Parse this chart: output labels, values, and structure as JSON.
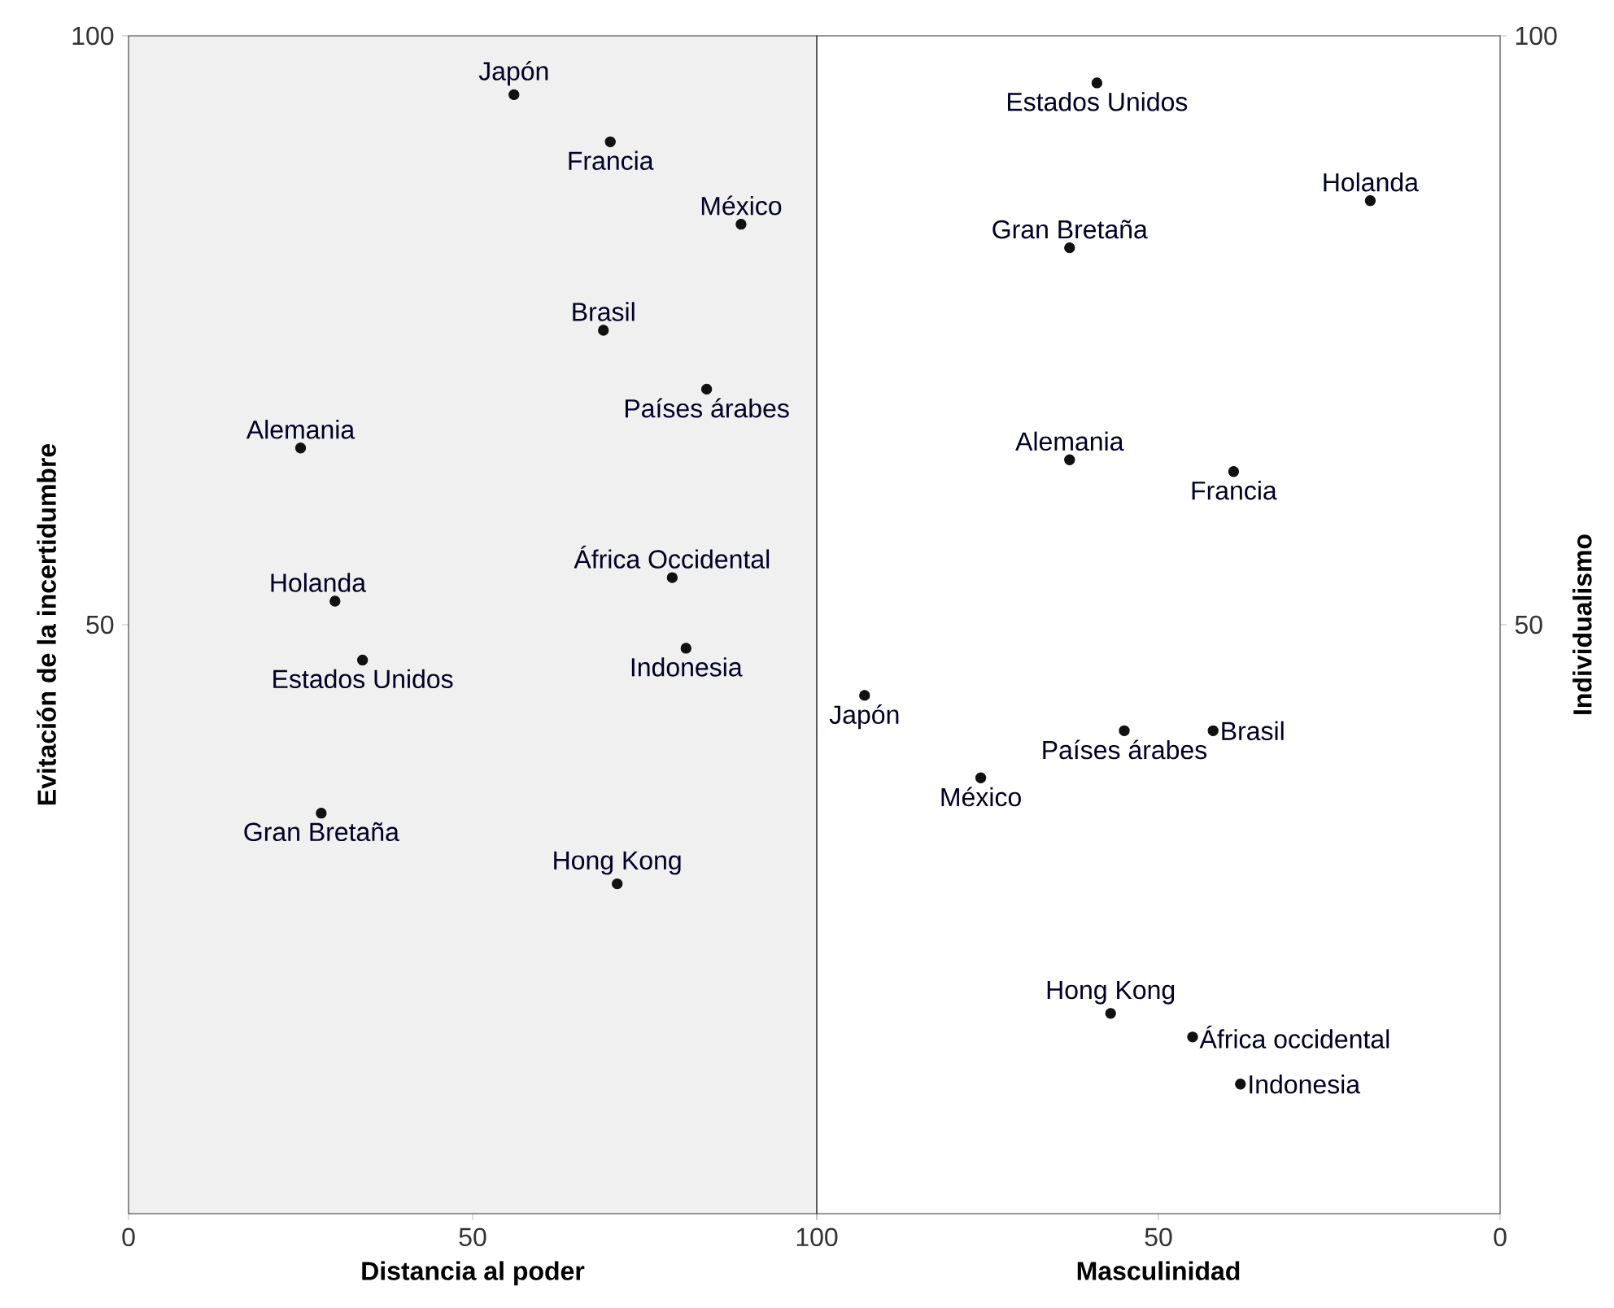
{
  "chart_data": [
    {
      "type": "scatter",
      "xlabel": "Distancia al poder",
      "ylabel": "Evitación de la incertidumbre",
      "xlim": [
        0,
        100
      ],
      "ylim": [
        0,
        100
      ],
      "xticks": [
        0,
        50,
        100
      ],
      "yticks": [
        50,
        100
      ],
      "marker": "circle",
      "series": [
        {
          "name": "Japón",
          "color": "#111111",
          "x": [
            56
          ],
          "values": [
            95
          ]
        },
        {
          "name": "Francia",
          "color": "#111111",
          "x": [
            70
          ],
          "values": [
            91
          ]
        },
        {
          "name": "México",
          "color": "#111111",
          "x": [
            89
          ],
          "values": [
            84
          ]
        },
        {
          "name": "Brasil",
          "color": "#111111",
          "x": [
            69
          ],
          "values": [
            75
          ]
        },
        {
          "name": "Países árabes",
          "color": "#111111",
          "x": [
            84
          ],
          "values": [
            70
          ]
        },
        {
          "name": "Alemania",
          "color": "#111111",
          "x": [
            25
          ],
          "values": [
            65
          ]
        },
        {
          "name": "África Occidental",
          "color": "#111111",
          "x": [
            79
          ],
          "values": [
            54
          ]
        },
        {
          "name": "Holanda",
          "color": "#111111",
          "x": [
            30
          ],
          "values": [
            52
          ]
        },
        {
          "name": "Estados Unidos",
          "color": "#111111",
          "x": [
            34
          ],
          "values": [
            47
          ]
        },
        {
          "name": "Indonesia",
          "color": "#111111",
          "x": [
            81
          ],
          "values": [
            48
          ]
        },
        {
          "name": "Gran Bretaña",
          "color": "#111111",
          "x": [
            28
          ],
          "values": [
            34
          ]
        },
        {
          "name": "Hong Kong",
          "color": "#111111",
          "x": [
            71
          ],
          "values": [
            28
          ]
        }
      ]
    },
    {
      "type": "scatter",
      "xlabel": "Masculinidad",
      "ylabel": "Individualismo",
      "xlim": [
        100,
        0
      ],
      "ylim": [
        0,
        100
      ],
      "xticks": [
        {
          "value": 100,
          "label": null
        },
        50,
        0
      ],
      "yticks": [
        50,
        100
      ],
      "marker": "circle",
      "series": [
        {
          "name": "Estados Unidos",
          "color": "#111111",
          "x": [
            59
          ],
          "values": [
            96
          ]
        },
        {
          "name": "Holanda",
          "color": "#111111",
          "x": [
            19
          ],
          "values": [
            86
          ]
        },
        {
          "name": "Gran Bretaña",
          "color": "#111111",
          "x": [
            63
          ],
          "values": [
            82
          ]
        },
        {
          "name": "Alemania",
          "color": "#111111",
          "x": [
            63
          ],
          "values": [
            64
          ]
        },
        {
          "name": "Francia",
          "color": "#111111",
          "x": [
            39
          ],
          "values": [
            63
          ]
        },
        {
          "name": "Japón",
          "color": "#111111",
          "x": [
            93
          ],
          "values": [
            44
          ]
        },
        {
          "name": "Países árabes",
          "color": "#111111",
          "x": [
            55
          ],
          "values": [
            41
          ]
        },
        {
          "name": "Brasil",
          "color": "#111111",
          "x": [
            42
          ],
          "values": [
            41
          ]
        },
        {
          "name": "México",
          "color": "#111111",
          "x": [
            76
          ],
          "values": [
            37
          ]
        },
        {
          "name": "Hong Kong",
          "color": "#111111",
          "x": [
            57
          ],
          "values": [
            17
          ]
        },
        {
          "name": "África occidental",
          "color": "#111111",
          "x": [
            45
          ],
          "values": [
            15
          ]
        },
        {
          "name": "Indonesia",
          "color": "#111111",
          "x": [
            38
          ],
          "values": [
            11
          ]
        }
      ]
    }
  ]
}
